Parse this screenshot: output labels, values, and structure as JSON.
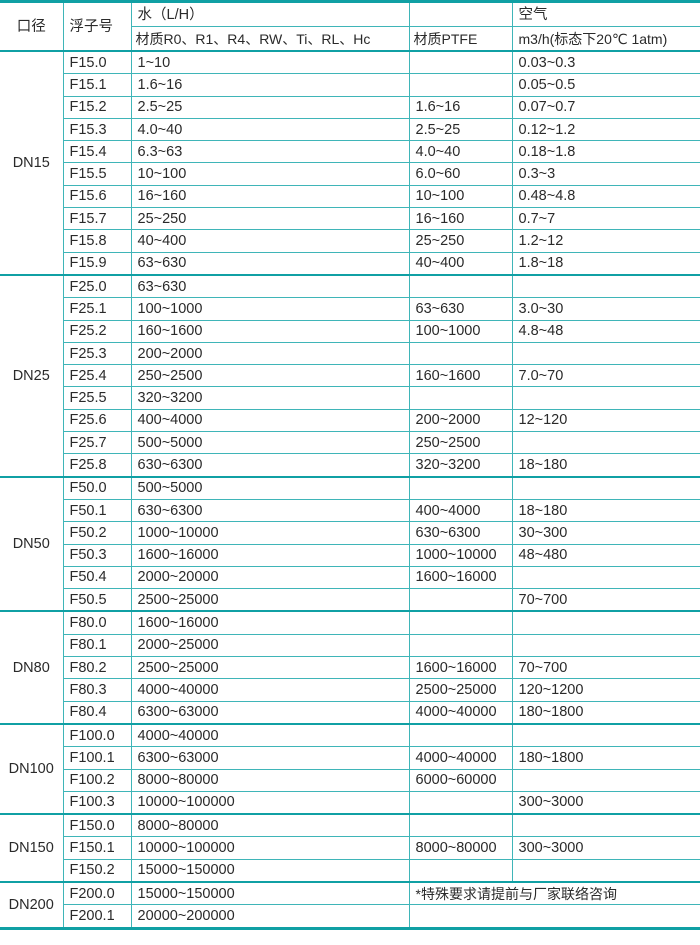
{
  "header": {
    "size": "口径",
    "float": "浮子号",
    "water": "水（L/H）",
    "water_material": "材质R0、R1、R4、RW、Ti、RL、Hc",
    "ptfe_material": "材质PTFE",
    "air": "空气",
    "air_unit": "m3/h(标态下20℃ 1atm)"
  },
  "groups": [
    {
      "size": "DN15",
      "rows": [
        [
          "F15.0",
          "1~10",
          "",
          "0.03~0.3"
        ],
        [
          "F15.1",
          "1.6~16",
          "",
          "0.05~0.5"
        ],
        [
          "F15.2",
          "2.5~25",
          "1.6~16",
          "0.07~0.7"
        ],
        [
          "F15.3",
          "4.0~40",
          "2.5~25",
          "0.12~1.2"
        ],
        [
          "F15.4",
          "6.3~63",
          "4.0~40",
          "0.18~1.8"
        ],
        [
          "F15.5",
          "10~100",
          "6.0~60",
          "0.3~3"
        ],
        [
          "F15.6",
          "16~160",
          "10~100",
          "0.48~4.8"
        ],
        [
          "F15.7",
          "25~250",
          "16~160",
          "0.7~7"
        ],
        [
          "F15.8",
          "40~400",
          "25~250",
          "1.2~12"
        ],
        [
          "F15.9",
          "63~630",
          "40~400",
          "1.8~18"
        ]
      ]
    },
    {
      "size": "DN25",
      "rows": [
        [
          "F25.0",
          "63~630",
          "",
          ""
        ],
        [
          "F25.1",
          "100~1000",
          "63~630",
          "3.0~30"
        ],
        [
          "F25.2",
          "160~1600",
          "100~1000",
          "4.8~48"
        ],
        [
          "F25.3",
          "200~2000",
          "",
          ""
        ],
        [
          "F25.4",
          "250~2500",
          "160~1600",
          "7.0~70"
        ],
        [
          "F25.5",
          "320~3200",
          "",
          ""
        ],
        [
          "F25.6",
          "400~4000",
          "200~2000",
          "12~120"
        ],
        [
          "F25.7",
          "500~5000",
          "250~2500",
          ""
        ],
        [
          "F25.8",
          "630~6300",
          "320~3200",
          "18~180"
        ]
      ]
    },
    {
      "size": "DN50",
      "rows": [
        [
          "F50.0",
          "500~5000",
          "",
          ""
        ],
        [
          "F50.1",
          "630~6300",
          "400~4000",
          "18~180"
        ],
        [
          "F50.2",
          "1000~10000",
          "630~6300",
          "30~300"
        ],
        [
          "F50.3",
          "1600~16000",
          "1000~10000",
          "48~480"
        ],
        [
          "F50.4",
          "2000~20000",
          "1600~16000",
          ""
        ],
        [
          "F50.5",
          "2500~25000",
          "",
          "70~700"
        ]
      ]
    },
    {
      "size": "DN80",
      "rows": [
        [
          "F80.0",
          "1600~16000",
          "",
          ""
        ],
        [
          "F80.1",
          "2000~25000",
          "",
          ""
        ],
        [
          "F80.2",
          "2500~25000",
          "1600~16000",
          "70~700"
        ],
        [
          "F80.3",
          "4000~40000",
          "2500~25000",
          "120~1200"
        ],
        [
          "F80.4",
          "6300~63000",
          "4000~40000",
          "180~1800"
        ]
      ]
    },
    {
      "size": "DN100",
      "rows": [
        [
          "F100.0",
          "4000~40000",
          "",
          ""
        ],
        [
          "F100.1",
          "6300~63000",
          "4000~40000",
          "180~1800"
        ],
        [
          "F100.2",
          "8000~80000",
          "6000~60000",
          ""
        ],
        [
          "F100.3",
          "10000~100000",
          "",
          "300~3000"
        ]
      ]
    },
    {
      "size": "DN150",
      "rows": [
        [
          "F150.0",
          "8000~80000",
          "",
          ""
        ],
        [
          "F150.1",
          "10000~100000",
          "8000~80000",
          "300~3000"
        ],
        [
          "F150.2",
          "15000~150000",
          "",
          ""
        ]
      ]
    },
    {
      "size": "DN200",
      "note": "*特殊要求请提前与厂家联络咨询",
      "rows": [
        [
          "F200.0",
          "15000~150000"
        ],
        [
          "F200.1",
          "20000~200000"
        ]
      ]
    }
  ]
}
